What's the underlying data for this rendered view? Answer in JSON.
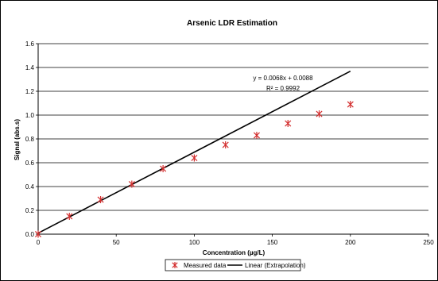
{
  "chart_data": {
    "type": "scatter",
    "title": "Arsenic LDR Estimation",
    "xlabel": "Concentration (µg/L)",
    "ylabel": "Signal (abs.s)",
    "xlim": [
      0,
      250
    ],
    "ylim": [
      0.0,
      1.6
    ],
    "x_ticks": [
      "0",
      "50",
      "100",
      "150",
      "200",
      "250"
    ],
    "y_ticks": [
      "0.0",
      "0.2",
      "0.4",
      "0.6",
      "0.8",
      "1.0",
      "1.2",
      "1.4",
      "1.6"
    ],
    "grid": "horizontal",
    "legend_position": "bottom",
    "series": [
      {
        "name": "Measured data",
        "kind": "markers",
        "marker": "asterisk",
        "color": "#d32f2f",
        "x": [
          0,
          20,
          40,
          60,
          80,
          100,
          120,
          140,
          160,
          180,
          200
        ],
        "y": [
          0.0,
          0.15,
          0.29,
          0.42,
          0.55,
          0.64,
          0.75,
          0.83,
          0.93,
          1.01,
          1.09
        ]
      },
      {
        "name": "Linear (Extrapolation)",
        "kind": "line",
        "color": "#000000",
        "slope": 0.0068,
        "intercept": 0.0088,
        "x_range": [
          0,
          200
        ]
      }
    ],
    "annotations": {
      "equation": "y = 0.0068x + 0.0088",
      "r_squared": "R² = 0.9992"
    }
  }
}
